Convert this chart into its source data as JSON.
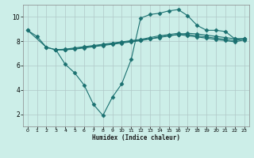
{
  "xlabel": "Humidex (Indice chaleur)",
  "bg_color": "#cceee8",
  "grid_color": "#b0c8c8",
  "line_color": "#1a7070",
  "xlim": [
    -0.5,
    23.5
  ],
  "ylim": [
    1,
    11
  ],
  "xticks": [
    0,
    1,
    2,
    3,
    4,
    5,
    6,
    7,
    8,
    9,
    10,
    11,
    12,
    13,
    14,
    15,
    16,
    17,
    18,
    19,
    20,
    21,
    22,
    23
  ],
  "yticks": [
    2,
    4,
    6,
    8,
    10
  ],
  "line1_x": [
    0,
    1,
    2,
    3,
    4,
    5,
    6,
    7,
    8,
    9,
    10,
    11,
    12,
    13,
    14,
    15,
    16,
    17,
    18,
    19,
    20,
    21,
    22,
    23
  ],
  "line1_y": [
    8.9,
    8.4,
    7.5,
    7.3,
    6.1,
    5.4,
    4.4,
    2.8,
    1.9,
    3.4,
    4.5,
    6.5,
    9.9,
    10.2,
    10.3,
    10.5,
    10.6,
    10.1,
    9.3,
    8.9,
    8.9,
    8.8,
    8.2,
    8.2
  ],
  "line2_x": [
    0,
    2,
    3,
    4,
    5,
    6,
    7,
    8,
    9,
    10,
    11,
    12,
    13,
    14,
    15,
    16,
    17,
    18,
    19,
    20,
    21,
    22,
    23
  ],
  "line2_y": [
    8.9,
    7.5,
    7.3,
    7.3,
    7.4,
    7.5,
    7.6,
    7.7,
    7.8,
    7.9,
    8.0,
    8.1,
    8.2,
    8.3,
    8.45,
    8.55,
    8.65,
    8.6,
    8.5,
    8.4,
    8.3,
    8.2,
    8.2
  ],
  "line3_x": [
    3,
    4,
    5,
    6,
    7,
    8,
    9,
    10,
    11,
    12,
    13,
    14,
    15,
    16,
    17,
    18,
    19,
    20,
    21,
    22,
    23
  ],
  "line3_y": [
    7.3,
    7.35,
    7.45,
    7.55,
    7.65,
    7.75,
    7.85,
    7.95,
    8.05,
    8.15,
    8.3,
    8.45,
    8.55,
    8.65,
    8.55,
    8.45,
    8.35,
    8.25,
    8.15,
    8.05,
    8.2
  ],
  "line4_x": [
    3,
    4,
    5,
    6,
    7,
    8,
    9,
    10,
    11,
    12,
    13,
    14,
    15,
    16,
    17,
    18,
    19,
    20,
    21,
    22,
    23
  ],
  "line4_y": [
    7.3,
    7.3,
    7.35,
    7.45,
    7.55,
    7.65,
    7.75,
    7.85,
    7.95,
    8.05,
    8.2,
    8.35,
    8.45,
    8.55,
    8.45,
    8.35,
    8.25,
    8.15,
    8.05,
    7.95,
    8.1
  ]
}
